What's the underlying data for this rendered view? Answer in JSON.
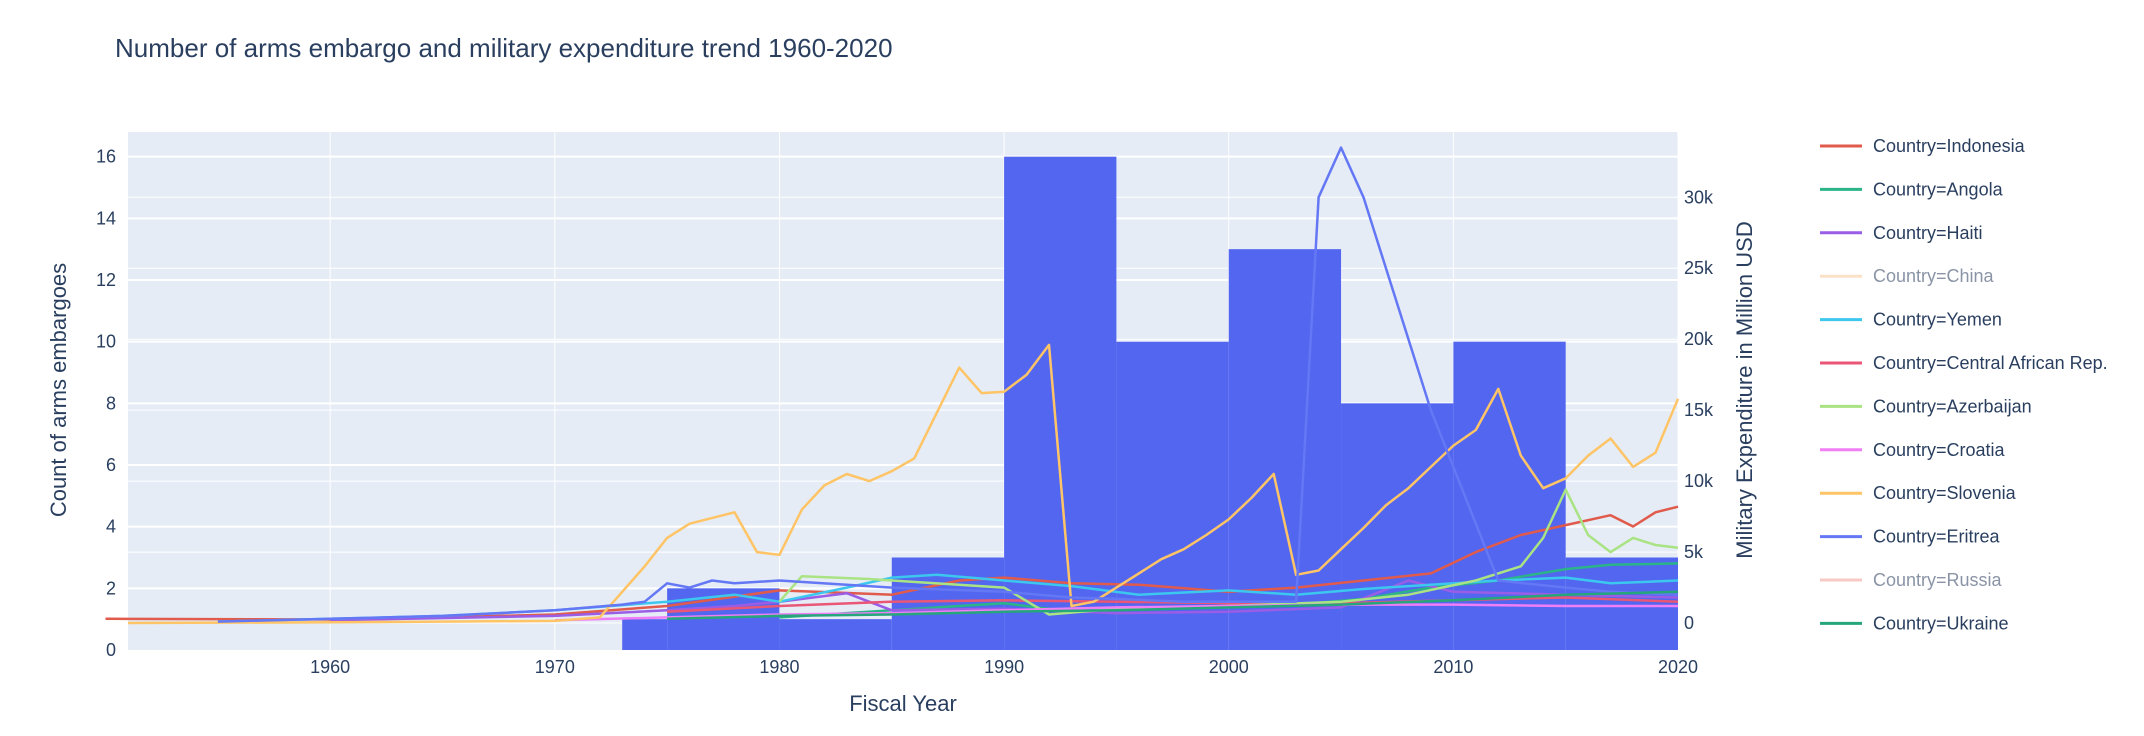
{
  "chart_data": {
    "type": "bar+line",
    "title": "Number of arms embargo and military expenditure trend 1960-2020",
    "xlabel": "Fiscal Year",
    "ylabel_left": "Count of arms embargoes",
    "ylabel_right": "Military Expenditure in Million USD",
    "xlim": [
      1951,
      2020
    ],
    "ylim_left": [
      0,
      16.8
    ],
    "ylim_right": [
      -1900,
      34600
    ],
    "x_ticks": [
      1960,
      1970,
      1980,
      1990,
      2000,
      2010,
      2020
    ],
    "y_left_ticks": [
      0,
      2,
      4,
      6,
      8,
      10,
      12,
      14,
      16
    ],
    "y_right_ticks": [
      0,
      5000,
      10000,
      15000,
      20000,
      25000,
      30000
    ],
    "y_right_tick_labels": [
      "0",
      "5k",
      "10k",
      "15k",
      "20k",
      "25k",
      "30k"
    ],
    "grid": true,
    "bar_color": "#5366f0",
    "bars": [
      {
        "x0": 1973,
        "x1": 1975,
        "value": 1
      },
      {
        "x0": 1975,
        "x1": 1980,
        "value": 2
      },
      {
        "x0": 1980,
        "x1": 1985,
        "value": 1
      },
      {
        "x0": 1985,
        "x1": 1990,
        "value": 3
      },
      {
        "x0": 1990,
        "x1": 1995,
        "value": 16
      },
      {
        "x0": 1995,
        "x1": 2000,
        "value": 10
      },
      {
        "x0": 2000,
        "x1": 2005,
        "value": 13
      },
      {
        "x0": 2005,
        "x1": 2010,
        "value": 8
      },
      {
        "x0": 2010,
        "x1": 2015,
        "value": 10
      },
      {
        "x0": 2015,
        "x1": 2020,
        "value": 3
      }
    ],
    "legend_position": "right",
    "series": [
      {
        "name": "Country=Indonesia",
        "color": "#e05b4b",
        "hidden": false,
        "x": [
          1950,
          1960,
          1965,
          1970,
          1975,
          1980,
          1985,
          1988,
          1990,
          1993,
          1996,
          2000,
          2003,
          2006,
          2009,
          2011,
          2013,
          2015,
          2017,
          2018,
          2019,
          2020
        ],
        "y": [
          300,
          250,
          400,
          600,
          1200,
          2300,
          2000,
          3000,
          3200,
          2800,
          2700,
          2200,
          2500,
          3000,
          3500,
          5000,
          6200,
          6900,
          7600,
          6800,
          7800,
          8200
        ]
      },
      {
        "name": "Country=Angola",
        "color": "#2bb488",
        "hidden": false,
        "x": [
          1980,
          1985,
          1988,
          1990,
          1993,
          1996,
          2000,
          2003,
          2006,
          2009,
          2012,
          2015,
          2017,
          2020
        ],
        "y": [
          400,
          900,
          1200,
          1400,
          800,
          1000,
          1200,
          1300,
          1700,
          2500,
          3000,
          3800,
          4100,
          4200
        ]
      },
      {
        "name": "Country=Haiti",
        "color": "#9a5de6",
        "hidden": false,
        "x": [
          1960,
          1970,
          1975,
          1978,
          1980,
          1983,
          1985,
          1990,
          1995,
          2000,
          2005,
          2008,
          2010,
          2015,
          2020
        ],
        "y": [
          200,
          500,
          900,
          1200,
          1500,
          2100,
          900,
          1000,
          700,
          800,
          1100,
          3000,
          2200,
          2000,
          1800
        ]
      },
      {
        "name": "Country=China",
        "color": "#f7c28f",
        "hidden": true,
        "x": [
          1990,
          2000,
          2010,
          2020
        ],
        "y": [
          500,
          800,
          1200,
          1500
        ]
      },
      {
        "name": "Country=Yemen",
        "color": "#3cc7ef",
        "hidden": false,
        "x": [
          1955,
          1960,
          1965,
          1970,
          1975,
          1978,
          1980,
          1983,
          1985,
          1987,
          1990,
          1993,
          1996,
          2000,
          2003,
          2006,
          2009,
          2012,
          2015,
          2017,
          2020
        ],
        "y": [
          100,
          300,
          500,
          900,
          1500,
          2000,
          1500,
          2500,
          3200,
          3400,
          3000,
          2600,
          2000,
          2300,
          2000,
          2400,
          2700,
          3000,
          3200,
          2800,
          3000
        ]
      },
      {
        "name": "Country=Central African Rep.",
        "color": "#ea5676",
        "hidden": false,
        "x": [
          1975,
          1980,
          1985,
          1990,
          1995,
          2000,
          2005,
          2010,
          2015,
          2020
        ],
        "y": [
          800,
          1200,
          1500,
          1600,
          1500,
          1400,
          1400,
          1600,
          1800,
          1500
        ]
      },
      {
        "name": "Country=Azerbaijan",
        "color": "#a9e383",
        "hidden": false,
        "x": [
          1980,
          1981,
          1984,
          1985,
          1990,
          1992,
          1995,
          2000,
          2005,
          2008,
          2011,
          2013,
          2014,
          2015,
          2016,
          2017,
          2018,
          2019,
          2020
        ],
        "y": [
          1500,
          3300,
          3100,
          3000,
          2500,
          600,
          1000,
          1200,
          1500,
          2000,
          3000,
          4000,
          6000,
          9400,
          6200,
          5000,
          6000,
          5500,
          5300
        ]
      },
      {
        "name": "Country=Croatia",
        "color": "#f07ef6",
        "hidden": false,
        "x": [
          1970,
          1975,
          1980,
          1985,
          1990,
          1995,
          2000,
          2005,
          2010,
          2015,
          2020
        ],
        "y": [
          200,
          400,
          600,
          700,
          900,
          1100,
          1200,
          1300,
          1300,
          1200,
          1200
        ]
      },
      {
        "name": "Country=Slovenia",
        "color": "#fec466",
        "hidden": false,
        "x": [
          1951,
          1960,
          1965,
          1970,
          1972,
          1974,
          1975,
          1976,
          1978,
          1979,
          1980,
          1981,
          1982,
          1983,
          1984,
          1985,
          1986,
          1988,
          1989,
          1990,
          1991,
          1992,
          1993,
          1994,
          1995,
          1996,
          1997,
          1998,
          1999,
          2000,
          2001,
          2002,
          2003,
          2004,
          2005,
          2006,
          2007,
          2008,
          2009,
          2010,
          2011,
          2012,
          2013,
          2014,
          2015,
          2016,
          2017,
          2018,
          2019,
          2020
        ],
        "y": [
          0,
          50,
          100,
          150,
          400,
          4000,
          6000,
          7000,
          7800,
          5000,
          4800,
          8000,
          9700,
          10500,
          10000,
          10700,
          11600,
          18000,
          16200,
          16300,
          17500,
          19600,
          1200,
          1500,
          2500,
          3500,
          4500,
          5200,
          6200,
          7300,
          8800,
          10500,
          3400,
          3700,
          5200,
          6700,
          8300,
          9500,
          11000,
          12500,
          13600,
          16500,
          11800,
          9500,
          10200,
          11800,
          13000,
          11000,
          12000,
          15800
        ]
      },
      {
        "name": "Country=Eritrea",
        "color": "#6477f4",
        "hidden": false,
        "x": [
          1955,
          1960,
          1965,
          1970,
          1973,
          1974,
          1975,
          1976,
          1977,
          1978,
          1980,
          1985,
          1990,
          1993,
          1995,
          1998,
          2000,
          2003,
          2004,
          2005,
          2006,
          2009,
          2012,
          2015,
          2017,
          2020
        ],
        "y": [
          100,
          300,
          500,
          900,
          1300,
          1500,
          2800,
          2500,
          3000,
          2800,
          3000,
          2500,
          2200,
          1800,
          1700,
          1500,
          1500,
          1500,
          30000,
          33500,
          30000,
          15000,
          3000,
          2500,
          2200,
          2000
        ]
      },
      {
        "name": "Country=Russia",
        "color": "#f3978c",
        "hidden": true,
        "x": [
          1990,
          2000,
          2010,
          2020
        ],
        "y": [
          900,
          700,
          1300,
          1800
        ]
      },
      {
        "name": "Country=Ukraine",
        "color": "#25a67b",
        "hidden": false,
        "x": [
          1975,
          1980,
          1985,
          1990,
          1995,
          2000,
          2005,
          2010,
          2015,
          2020
        ],
        "y": [
          300,
          500,
          600,
          800,
          900,
          1100,
          1300,
          1600,
          2000,
          2200
        ]
      }
    ]
  }
}
